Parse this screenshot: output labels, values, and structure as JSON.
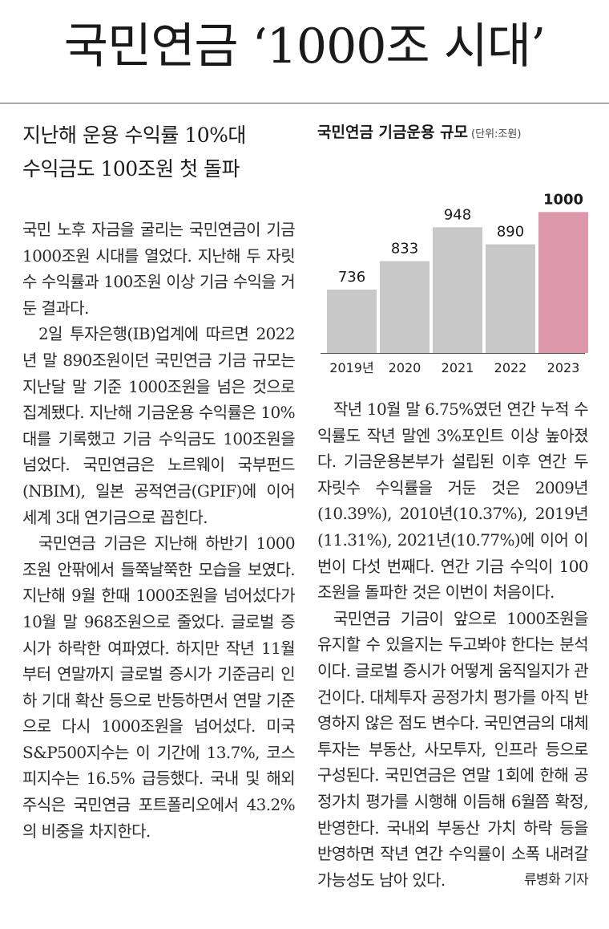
{
  "headline": "국민연금 ‘1000조 시대’",
  "subheadline": {
    "line1": "지난해 운용 수익률 10%대",
    "line2": "수익금도 100조원 첫 돌파"
  },
  "left_column": [
    "국민 노후 자금을 굴리는 국민연금이 기금 1000조원 시대를 열었다. 지난해 두 자릿수 수익률과 100조원 이상 기금 수익을 거둔 결과다.",
    "2일 투자은행(IB)업계에 따르면 2022년 말 890조원이던 국민연금 기금 규모는 지난달 말 기준 1000조원을 넘은 것으로 집계됐다. 지난해 기금운용 수익률은 10%대를 기록했고 기금 수익금도 100조원을 넘었다. 국민연금은 노르웨이 국부펀드(NBIM), 일본 공적연금(GPIF)에 이어 세계 3대 연기금으로 꼽힌다.",
    "국민연금 기금은 지난해 하반기 1000조원 안팎에서 들쭉날쭉한 모습을 보였다. 지난해 9월 한때 1000조원을 넘어섰다가 10월 말 968조원으로 줄었다. 글로벌 증시가 하락한 여파였다. 하지만 작년 11월부터 연말까지 글로벌 증시가 기준금리 인하 기대 확산 등으로 반등하면서 연말 기준으로 다시 1000조원을 넘어섰다. 미국 S&P500지수는 이 기간에 13.7%, 코스피지수는 16.5% 급등했다. 국내 및 해외 주식은 국민연금 포트폴리오에서 43.2%의 비중을 차지한다."
  ],
  "right_column": [
    "작년 10월 말 6.75%였던 연간 누적 수익률도 작년 말엔 3%포인트 이상 높아졌다. 기금운용본부가 설립된 이후 연간 두 자릿수 수익률을 거둔 것은 2009년(10.39%), 2010년(10.37%), 2019년(11.31%), 2021년(10.77%)에 이어 이번이 다섯 번째다. 연간 기금 수익이 100조원을 돌파한 것은 이번이 처음이다.",
    "국민연금 기금이 앞으로 1000조원을 유지할 수 있을지는 두고봐야 한다는 분석이다. 글로벌 증시가 어떻게 움직일지가 관건이다. 대체투자 공정가치 평가를 아직 반영하지 않은 점도 변수다. 국민연금의 대체투자는 부동산, 사모투자, 인프라 등으로 구성된다. 국민연금은 연말 1회에 한해 공정가치 평가를 시행해 이듬해 6월쯤 확정, 반영한다. 국내외 부동산 가치 하락 등을 반영하면 작년 연간 수익률이 소폭 내려갈 가능성도 남아 있다."
  ],
  "byline": "류병화 기자",
  "chart_data": {
    "type": "bar",
    "title": "국민연금 기금운용 규모",
    "unit": "(단위:조원)",
    "categories": [
      "2019년",
      "2020",
      "2021",
      "2022",
      "2023"
    ],
    "values": [
      736,
      833,
      948,
      890,
      1000
    ],
    "value_labels": [
      "736",
      "833",
      "948",
      "890",
      "1000"
    ],
    "colors": [
      "#c8c8c8",
      "#c8c8c8",
      "#c8c8c8",
      "#c8c8c8",
      "#dc97ab"
    ],
    "highlight_index": 4,
    "ylim": [
      520,
      1050
    ],
    "grid": false
  }
}
